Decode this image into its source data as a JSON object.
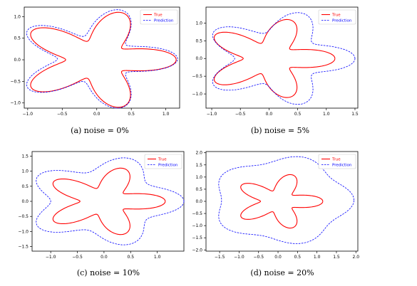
{
  "chart_data": [
    {
      "type": "line",
      "caption": "(a) noise = 0%",
      "xlim": [
        -1.05,
        1.2
      ],
      "ylim": [
        -1.12,
        1.22
      ],
      "xticks": [
        -1.0,
        -0.5,
        0.0,
        0.5,
        1.0
      ],
      "xtick_labels": [
        "−1.0",
        "−0.5",
        "0.0",
        "0.5",
        "1.0"
      ],
      "yticks": [
        -1.0,
        -0.5,
        0.0,
        0.5,
        1.0
      ],
      "ytick_labels": [
        "−1.0",
        "−0.5",
        "0.0",
        "0.5",
        "1.0"
      ],
      "legend": "top-right",
      "series": [
        {
          "name": "True",
          "color": "#ff0000",
          "style": "solid",
          "r0": 0.8,
          "amp": 0.35,
          "dx": 0.0,
          "dy": 0.0
        },
        {
          "name": "Prediction",
          "color": "#0000ff",
          "style": "dashed",
          "r0": 0.87,
          "amp": 0.32,
          "dx": -0.02,
          "dy": 0.02
        }
      ]
    },
    {
      "type": "line",
      "caption": "(b) noise = 5%",
      "xlim": [
        -1.1,
        1.55
      ],
      "ylim": [
        -1.4,
        1.45
      ],
      "xticks": [
        -1.0,
        -0.5,
        0.0,
        0.5,
        1.0,
        1.5
      ],
      "xtick_labels": [
        "−1.0",
        "−0.5",
        "0.0",
        "0.5",
        "1.0",
        "1.5"
      ],
      "yticks": [
        -1.0,
        -0.5,
        0.0,
        0.5,
        1.0
      ],
      "ytick_labels": [
        "−1.0",
        "−0.5",
        "0.0",
        "0.5",
        "1.0"
      ],
      "legend": "top-right",
      "series": [
        {
          "name": "True",
          "color": "#ff0000",
          "style": "solid",
          "r0": 0.8,
          "amp": 0.35,
          "dx": 0.0,
          "dy": 0.0
        },
        {
          "name": "Prediction",
          "color": "#0000ff",
          "style": "dashed",
          "r0": 1.05,
          "amp": 0.3,
          "dx": 0.15,
          "dy": 0.0
        }
      ]
    },
    {
      "type": "line",
      "caption": "(c) noise = 10%",
      "xlim": [
        -1.35,
        1.5
      ],
      "ylim": [
        -1.65,
        1.65
      ],
      "xticks": [
        -1.0,
        -0.5,
        0.0,
        0.5,
        1.0
      ],
      "xtick_labels": [
        "−1.0",
        "−0.5",
        "0.0",
        "0.5",
        "1.0"
      ],
      "yticks": [
        -1.5,
        -1.0,
        -0.5,
        0.0,
        0.5,
        1.0,
        1.5
      ],
      "ytick_labels": [
        "−1.5",
        "−1.0",
        "−0.5",
        "0.0",
        "0.5",
        "1.0",
        "1.5"
      ],
      "legend": "top-right",
      "series": [
        {
          "name": "True",
          "color": "#ff0000",
          "style": "solid",
          "r0": 0.8,
          "amp": 0.35,
          "dx": 0.0,
          "dy": 0.0
        },
        {
          "name": "Prediction",
          "color": "#0000ff",
          "style": "dashed",
          "r0": 1.25,
          "amp": 0.25,
          "dx": 0.0,
          "dy": 0.0
        }
      ]
    },
    {
      "type": "line",
      "caption": "(d) noise = 20%",
      "xlim": [
        -1.85,
        2.05
      ],
      "ylim": [
        -2.05,
        2.05
      ],
      "xticks": [
        -1.5,
        -1.0,
        -0.5,
        0.0,
        0.5,
        1.0,
        1.5,
        2.0
      ],
      "xtick_labels": [
        "−1.5",
        "−1.0",
        "−0.5",
        "0.0",
        "0.5",
        "1.0",
        "1.5",
        "2.0"
      ],
      "yticks": [
        -2.0,
        -1.5,
        -1.0,
        -0.5,
        0.0,
        0.5,
        1.0,
        1.5,
        2.0
      ],
      "ytick_labels": [
        "−2.0",
        "−1.5",
        "−1.0",
        "−0.5",
        "0.0",
        "0.5",
        "1.0",
        "1.5",
        "2.0"
      ],
      "legend": "top-right",
      "series": [
        {
          "name": "True",
          "color": "#ff0000",
          "style": "solid",
          "r0": 0.8,
          "amp": 0.35,
          "dx": 0.0,
          "dy": 0.0
        },
        {
          "name": "Prediction",
          "color": "#0000ff",
          "style": "dashed",
          "r0": 1.7,
          "amp": 0.15,
          "dx": 0.1,
          "dy": 0.05
        }
      ]
    }
  ]
}
